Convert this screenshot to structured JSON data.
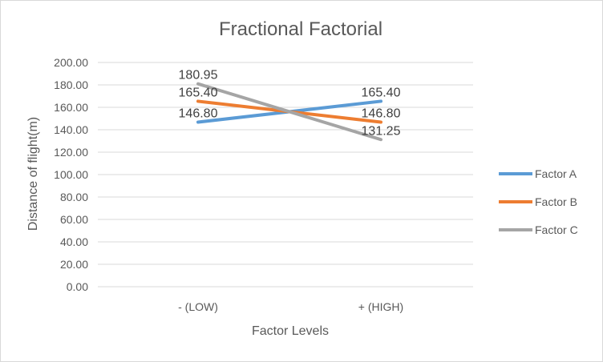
{
  "chart_data": {
    "type": "line",
    "title": "Fractional Factorial",
    "xlabel": "Factor Levels",
    "ylabel": "Distance of flight(m)",
    "categories": [
      "- (LOW)",
      "+ (HIGH)"
    ],
    "ylim": [
      0,
      200
    ],
    "ytick_step": 20,
    "ytick_labels": [
      "0.00",
      "20.00",
      "40.00",
      "60.00",
      "80.00",
      "100.00",
      "120.00",
      "140.00",
      "160.00",
      "180.00",
      "200.00"
    ],
    "grid": true,
    "legend_position": "right",
    "series": [
      {
        "name": "Factor A",
        "color": "#5b9bd5",
        "values": [
          146.8,
          165.4
        ],
        "labels": [
          "146.80",
          "165.40"
        ]
      },
      {
        "name": "Factor B",
        "color": "#ed7d31",
        "values": [
          165.4,
          146.8
        ],
        "labels": [
          "165.40",
          "146.80"
        ]
      },
      {
        "name": "Factor C",
        "color": "#a5a5a5",
        "values": [
          180.95,
          131.25
        ],
        "labels": [
          "180.95",
          "131.25"
        ]
      }
    ]
  }
}
